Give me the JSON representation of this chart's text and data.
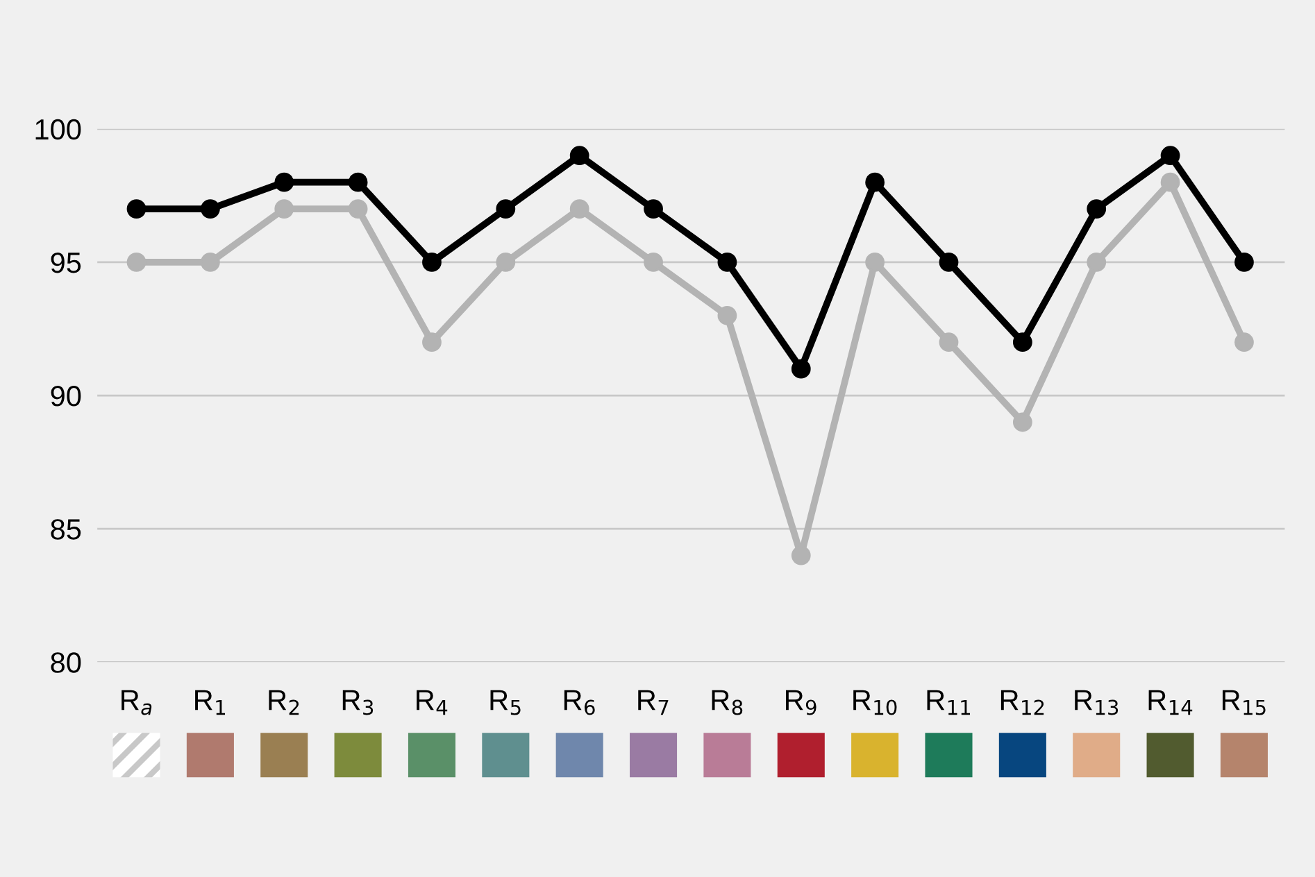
{
  "chart_data": {
    "type": "line",
    "categories": [
      "R$_{a}$",
      "R$_{1}$",
      "R$_{2}$",
      "R$_{3}$",
      "R$_{4}$",
      "R$_{5}$",
      "R$_{6}$",
      "R$_{7}$",
      "R$_{8}$",
      "R$_{9}$",
      "R$_{10}$",
      "R$_{11}$",
      "R$_{12}$",
      "R$_{13}$",
      "R$_{14}$",
      "R$_{15}$"
    ],
    "series": [
      {
        "color": "#b3b3b3",
        "values": [
          95,
          95,
          97,
          97,
          92,
          95,
          97,
          95,
          93,
          84,
          95,
          92,
          89,
          95,
          98,
          92
        ]
      },
      {
        "color": "#000000",
        "values": [
          97,
          97,
          98,
          98,
          95,
          97,
          99,
          97,
          95,
          91,
          98,
          95,
          92,
          97,
          99,
          95
        ]
      }
    ],
    "ylim": [
      80,
      100
    ],
    "yticks": [
      80,
      85,
      90,
      95,
      100
    ],
    "grid": "y",
    "legend": false,
    "marker": "circle",
    "line_style": "solid"
  }
}
